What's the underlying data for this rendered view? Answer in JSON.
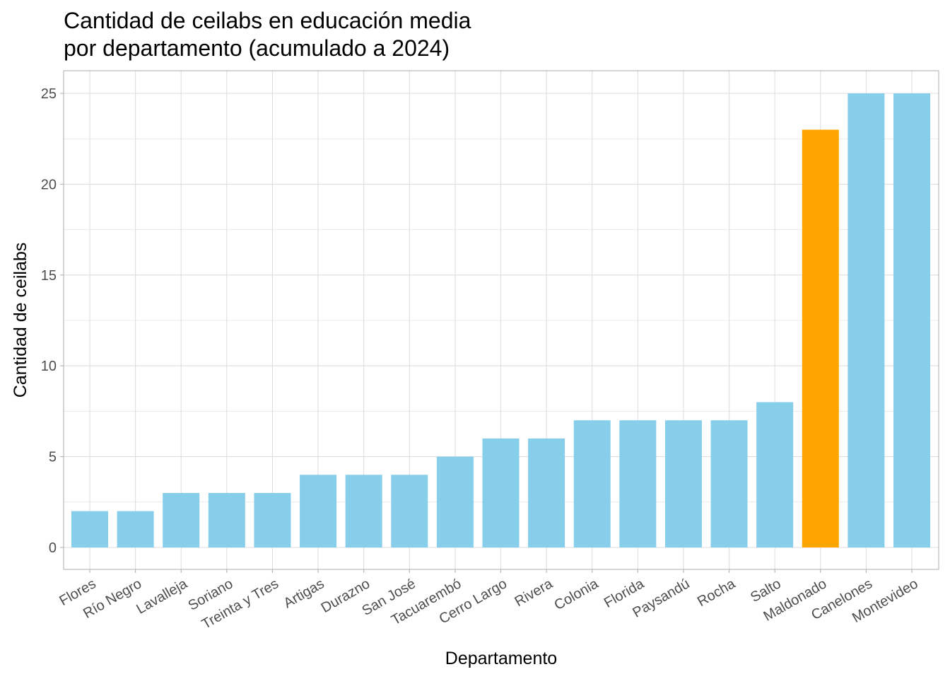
{
  "chart_data": {
    "type": "bar",
    "title_line1": "Cantidad de ceilabs en educación media",
    "title_line2": "por departamento (acumulado a 2024)",
    "xlabel": "Departamento",
    "ylabel": "Cantidad de ceilabs",
    "ylim": [
      -1.2,
      26.2
    ],
    "yticks": [
      0,
      5,
      10,
      15,
      20,
      25
    ],
    "grid": true,
    "categories": [
      "Flores",
      "Río Negro",
      "Lavalleja",
      "Soriano",
      "Treinta y Tres",
      "Artigas",
      "Durazno",
      "San José",
      "Tacuarembó",
      "Cerro Largo",
      "Rivera",
      "Colonia",
      "Florida",
      "Paysandú",
      "Rocha",
      "Salto",
      "Maldonado",
      "Canelones",
      "Montevideo"
    ],
    "values": [
      2,
      2,
      3,
      3,
      3,
      4,
      4,
      4,
      5,
      6,
      6,
      7,
      7,
      7,
      7,
      8,
      23,
      25,
      25
    ],
    "highlight": "Maldonado",
    "colors": {
      "default": "#87CEEB",
      "highlight": "#FFA500",
      "grid": "#DEDEDE",
      "border": "#B3B3B3",
      "tick_text": "#4D4D4D"
    }
  }
}
